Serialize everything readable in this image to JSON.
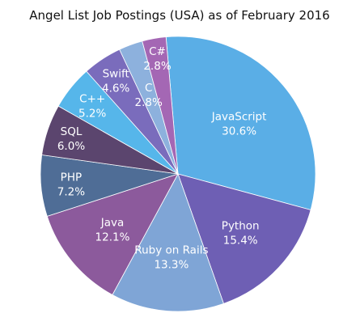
{
  "chart_data": {
    "type": "pie",
    "title": "Angel List Job Postings (USA) as of February 2016",
    "slices": [
      {
        "label": "JavaScript",
        "percent_label": "30.6%",
        "value": 30.6,
        "color": "#5aaee6"
      },
      {
        "label": "Python",
        "percent_label": "15.4%",
        "value": 15.4,
        "color": "#6e5fb4"
      },
      {
        "label": "Ruby on Rails",
        "percent_label": "13.3%",
        "value": 13.3,
        "color": "#7fa5d6"
      },
      {
        "label": "Java",
        "percent_label": "12.1%",
        "value": 12.1,
        "color": "#8c5a9c"
      },
      {
        "label": "PHP",
        "percent_label": "7.2%",
        "value": 7.2,
        "color": "#4f6d96"
      },
      {
        "label": "SQL",
        "percent_label": "6.0%",
        "value": 6.0,
        "color": "#5b456e"
      },
      {
        "label": "C++",
        "percent_label": "5.2%",
        "value": 5.2,
        "color": "#56b6ea"
      },
      {
        "label": "Swift",
        "percent_label": "4.6%",
        "value": 4.6,
        "color": "#7a6cbc"
      },
      {
        "label": "C",
        "percent_label": "2.8%",
        "value": 2.8,
        "color": "#8db1dd"
      },
      {
        "label": "C#",
        "percent_label": "2.8%",
        "value": 2.8,
        "color": "#a467b4"
      }
    ]
  }
}
